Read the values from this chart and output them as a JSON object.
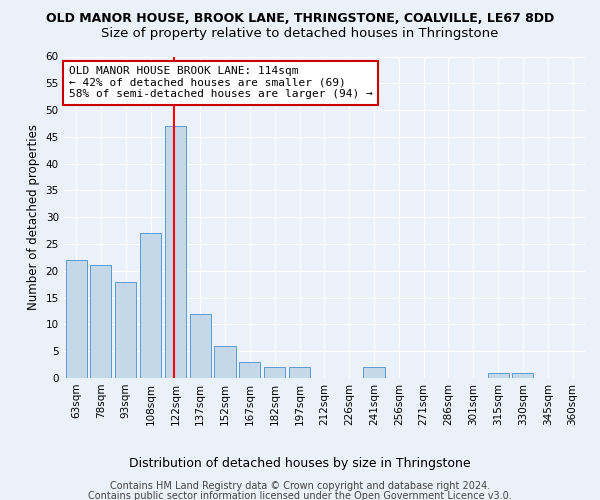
{
  "title1": "OLD MANOR HOUSE, BROOK LANE, THRINGSTONE, COALVILLE, LE67 8DD",
  "title2": "Size of property relative to detached houses in Thringstone",
  "xlabel": "Distribution of detached houses by size in Thringstone",
  "ylabel": "Number of detached properties",
  "categories": [
    "63sqm",
    "78sqm",
    "93sqm",
    "108sqm",
    "122sqm",
    "137sqm",
    "152sqm",
    "167sqm",
    "182sqm",
    "197sqm",
    "212sqm",
    "226sqm",
    "241sqm",
    "256sqm",
    "271sqm",
    "286sqm",
    "301sqm",
    "315sqm",
    "330sqm",
    "345sqm",
    "360sqm"
  ],
  "values": [
    22,
    21,
    18,
    27,
    47,
    12,
    6,
    3,
    2,
    2,
    0,
    0,
    2,
    0,
    0,
    0,
    0,
    1,
    1,
    0,
    0
  ],
  "bar_color": "#c5d8e8",
  "bar_edge_color": "#5b9bd5",
  "ylim": [
    0,
    60
  ],
  "yticks": [
    0,
    5,
    10,
    15,
    20,
    25,
    30,
    35,
    40,
    45,
    50,
    55,
    60
  ],
  "red_line_index": 3.93,
  "annotation_line1": "OLD MANOR HOUSE BROOK LANE: 114sqm",
  "annotation_line2": "← 42% of detached houses are smaller (69)",
  "annotation_line3": "58% of semi-detached houses are larger (94) →",
  "annotation_box_color": "#ffffff",
  "annotation_box_edge": "#cc0000",
  "footer1": "Contains HM Land Registry data © Crown copyright and database right 2024.",
  "footer2": "Contains public sector information licensed under the Open Government Licence v3.0.",
  "bg_color": "#eaf1f8",
  "plot_bg_color": "#eaf1f8",
  "title1_fontsize": 9,
  "title2_fontsize": 9.5,
  "xlabel_fontsize": 9,
  "ylabel_fontsize": 8.5,
  "tick_fontsize": 7.5,
  "annotation_fontsize": 8,
  "footer_fontsize": 7
}
